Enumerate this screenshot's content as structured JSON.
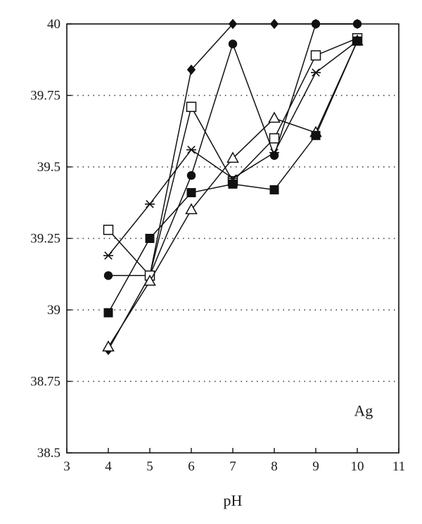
{
  "chart_data": {
    "type": "line",
    "xlabel": "pH",
    "ylabel": "",
    "xlim": [
      3,
      11
    ],
    "ylim": [
      38.5,
      40
    ],
    "x_ticks": [
      "3",
      "4",
      "5",
      "6",
      "7",
      "8",
      "9",
      "10",
      "11"
    ],
    "y_ticks": [
      "38.5",
      "38.75",
      "39",
      "39.25",
      "39.5",
      "39.75",
      "40"
    ],
    "grid": "horizontal dotted",
    "annotation": "Ag",
    "series": [
      {
        "marker": "diamond-filled",
        "x": [
          4,
          5,
          6,
          7,
          8,
          9,
          10
        ],
        "values": [
          38.86,
          39.12,
          39.84,
          40.0,
          40.0,
          40.0,
          40.0
        ]
      },
      {
        "marker": "circle-filled",
        "x": [
          4,
          5,
          6,
          7,
          8,
          9,
          10
        ],
        "values": [
          39.12,
          39.12,
          39.47,
          39.93,
          39.54,
          40.0,
          40.0
        ]
      },
      {
        "marker": "square-open",
        "x": [
          4,
          5,
          6,
          7,
          8,
          9,
          10
        ],
        "values": [
          39.28,
          39.12,
          39.71,
          39.45,
          39.6,
          39.89,
          39.95
        ]
      },
      {
        "marker": "star",
        "x": [
          4,
          5,
          6,
          7,
          8,
          9,
          10
        ],
        "values": [
          39.19,
          39.37,
          39.56,
          39.46,
          39.55,
          39.83,
          39.94
        ]
      },
      {
        "marker": "triangle-open",
        "x": [
          4,
          5,
          6,
          7,
          8,
          9,
          10
        ],
        "values": [
          38.87,
          39.1,
          39.35,
          39.53,
          39.67,
          39.62,
          39.94
        ]
      },
      {
        "marker": "square-filled",
        "x": [
          4,
          5,
          6,
          7,
          8,
          9,
          10
        ],
        "values": [
          38.99,
          39.25,
          39.41,
          39.44,
          39.42,
          39.61,
          39.94
        ]
      }
    ]
  }
}
